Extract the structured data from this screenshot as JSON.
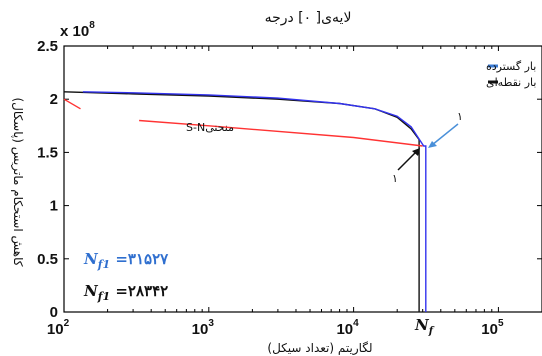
{
  "chart_data": {
    "type": "line",
    "title": "لایه‌ی[ ۰] درجه",
    "xlabel": "لگاریتم (تعداد سیکل)",
    "ylabel": "کاهش استحکام ماتریس (پاسکال)",
    "y_multiplier": "x 10",
    "y_multiplier_exp": "8",
    "x_scale": "log",
    "xlim": [
      100,
      200000
    ],
    "ylim": [
      0,
      2.5
    ],
    "x_ticks": [
      {
        "value": 100,
        "base": "10",
        "exp": "2"
      },
      {
        "value": 1000,
        "base": "10",
        "exp": "3"
      },
      {
        "value": 10000,
        "base": "10",
        "exp": "4"
      },
      {
        "value": 100000,
        "base": "10",
        "exp": "5"
      }
    ],
    "y_ticks": [
      {
        "value": 0,
        "label": "0"
      },
      {
        "value": 0.5,
        "label": "0.5"
      },
      {
        "value": 1,
        "label": "1"
      },
      {
        "value": 1.5,
        "label": "1.5"
      },
      {
        "value": 2,
        "label": "2"
      },
      {
        "value": 2.5,
        "label": "2.5"
      }
    ],
    "grid": false,
    "legend_position": "top-right",
    "series": [
      {
        "name": "بار گسترده",
        "color": "#3333ee",
        "points": [
          [
            135,
            2.07
          ],
          [
            300,
            2.06
          ],
          [
            1000,
            2.04
          ],
          [
            3000,
            2.01
          ],
          [
            8000,
            1.96
          ],
          [
            14000,
            1.91
          ],
          [
            20000,
            1.84
          ],
          [
            25000,
            1.74
          ],
          [
            28500,
            1.62
          ],
          [
            30500,
            1.56
          ],
          [
            31527,
            1.56
          ],
          [
            31527,
            0
          ]
        ]
      },
      {
        "name": "بار نقطه‌ای",
        "color": "#111111",
        "points": [
          [
            100,
            2.07
          ],
          [
            300,
            2.05
          ],
          [
            1000,
            2.03
          ],
          [
            3000,
            2.0
          ],
          [
            8000,
            1.96
          ],
          [
            14000,
            1.91
          ],
          [
            20000,
            1.83
          ],
          [
            25000,
            1.72
          ],
          [
            28342,
            1.62
          ],
          [
            28342,
            0
          ]
        ]
      },
      {
        "name": "منحنی S-N",
        "color": "#ff3333",
        "points": [
          [
            100,
            2.0
          ],
          [
            130,
            1.91
          ]
        ],
        "points2": [
          [
            330,
            1.8
          ],
          [
            1000,
            1.75
          ],
          [
            10000,
            1.64
          ],
          [
            30000,
            1.56
          ]
        ]
      }
    ],
    "annotations": {
      "sn_label": "منحنیS-N",
      "marker_blue": "۱",
      "marker_black": "۱",
      "nf_blue_label": "N",
      "nf_blue_sub": "f1",
      "nf_blue_value": " =۳۱۵۲۷",
      "nf_black_label": "N",
      "nf_black_sub": "f1",
      "nf_black_value": " =۲۸۳۴۲",
      "nf_axis_label": "N",
      "nf_axis_sub": "f",
      "blue_color": "#2f6fcf",
      "arrow_color": "#4a90d9"
    }
  }
}
